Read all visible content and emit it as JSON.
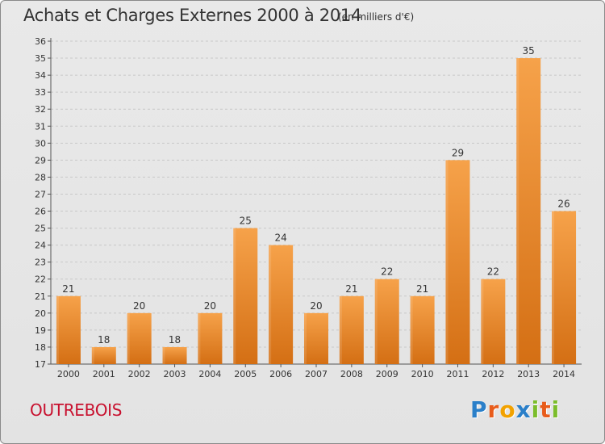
{
  "title": "Achats et Charges Externes 2000 à 2014",
  "unit": "(en milliers d'€)",
  "commune": "OUTREBOIS",
  "logo": {
    "text": "Proxiti",
    "letters": [
      {
        "char": "P",
        "color": "#2a7fc9"
      },
      {
        "char": "r",
        "color": "#e85c1b"
      },
      {
        "char": "o",
        "color": "#f2a200"
      },
      {
        "char": "x",
        "color": "#2a7fc9"
      },
      {
        "char": "i",
        "color": "#7bbd2a"
      },
      {
        "char": "t",
        "color": "#e85c1b"
      },
      {
        "char": "i",
        "color": "#7bbd2a"
      }
    ]
  },
  "colors": {
    "bar_top": "#f6a24a",
    "bar_bottom": "#d46f14",
    "grid": "#c8c8c8",
    "text": "#333333"
  },
  "chart_data": {
    "type": "bar",
    "title": "Achats et Charges Externes 2000 à 2014",
    "categories": [
      "2000",
      "2001",
      "2002",
      "2003",
      "2004",
      "2005",
      "2006",
      "2007",
      "2008",
      "2009",
      "2010",
      "2011",
      "2012",
      "2013",
      "2014"
    ],
    "values": [
      21,
      18,
      20,
      18,
      20,
      25,
      24,
      20,
      21,
      22,
      21,
      29,
      22,
      35,
      26
    ],
    "ylim": [
      17,
      36
    ],
    "yticks": [
      "17",
      "18",
      "19",
      "20",
      "21",
      "22",
      "23",
      "24",
      "25",
      "26",
      "27",
      "28",
      "29",
      "30",
      "31",
      "32",
      "33",
      "34",
      "35",
      "36"
    ],
    "grid": true,
    "xlabel": "",
    "ylabel": ""
  }
}
